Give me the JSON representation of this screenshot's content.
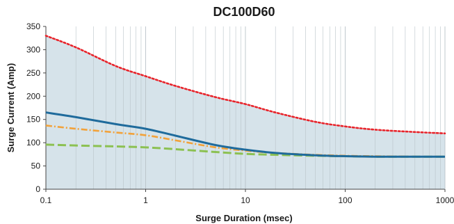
{
  "chart_data": {
    "type": "line",
    "title": "DC100D60",
    "xlabel": "Surge Duration (msec)",
    "ylabel": "Surge Current (Amp)",
    "x_scale": "log",
    "xlim": [
      0.1,
      1000
    ],
    "ylim": [
      0,
      350
    ],
    "x_ticks": [
      0.1,
      1,
      10,
      100,
      1000
    ],
    "x_tick_labels": [
      "0.1",
      "1",
      "10",
      "100",
      "1000"
    ],
    "y_ticks": [
      0,
      50,
      100,
      150,
      200,
      250,
      300,
      350
    ],
    "y_tick_labels": [
      "0",
      "50",
      "100",
      "150",
      "200",
      "250",
      "300",
      "350"
    ],
    "grid": true,
    "shaded_region_under_series": 0,
    "colors": {
      "plot_background": "#ffffff",
      "area_fill": "#d6e3ea",
      "grid": "#b9c3c9",
      "axis": "#444444"
    },
    "series": [
      {
        "color": "#e8232a",
        "style": "dotted",
        "x": [
          0.1,
          0.2,
          0.5,
          1,
          2,
          5,
          10,
          20,
          50,
          100,
          200,
          500,
          1000
        ],
        "values": [
          330,
          305,
          265,
          243,
          222,
          198,
          183,
          165,
          145,
          135,
          128,
          123,
          120
        ]
      },
      {
        "color": "#1f6b9c",
        "style": "solid",
        "x": [
          0.1,
          0.2,
          0.5,
          1,
          2,
          5,
          10,
          20,
          50,
          100,
          200,
          500,
          1000
        ],
        "values": [
          165,
          155,
          140,
          130,
          115,
          95,
          85,
          78,
          73,
          71,
          70,
          70,
          70
        ]
      },
      {
        "color": "#f2a23a",
        "style": "dash-dot",
        "x": [
          0.1,
          0.2,
          0.5,
          1,
          2,
          5,
          10,
          20,
          50,
          100,
          200,
          500,
          1000
        ],
        "values": [
          137,
          130,
          122,
          116,
          105,
          90,
          83,
          78,
          74,
          72,
          71,
          70,
          70
        ]
      },
      {
        "color": "#8cc152",
        "style": "dashed",
        "x": [
          0.1,
          0.2,
          0.5,
          1,
          2,
          5,
          10,
          20,
          50,
          100,
          200,
          500,
          1000
        ],
        "values": [
          96,
          94,
          92,
          90,
          86,
          80,
          76,
          74,
          72,
          71,
          70,
          70,
          70
        ]
      }
    ]
  }
}
